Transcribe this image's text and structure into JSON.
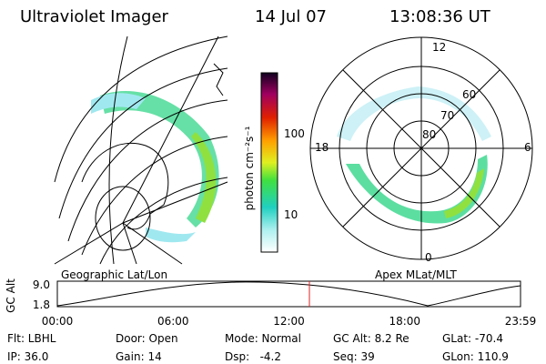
{
  "header": {
    "title": "Ultraviolet Imager",
    "date": "14 Jul 07",
    "time": "13:08:36 UT"
  },
  "left_panel": {
    "label": "Geographic Lat/Lon"
  },
  "right_panel": {
    "label": "Apex MLat/MLT",
    "mlt_labels": [
      "12",
      "18",
      "6",
      "0"
    ],
    "lat_labels": [
      "60",
      "70",
      "80"
    ]
  },
  "colorbar": {
    "unit_label": "photon cm⁻²s⁻¹",
    "ticks": [
      "100",
      "10"
    ]
  },
  "altitude_plot": {
    "ylabel": "GC Alt",
    "yticks": [
      "9.0",
      "1.8"
    ],
    "xticks": [
      "00:00",
      "06:00",
      "12:00",
      "18:00",
      "23:59"
    ]
  },
  "status": {
    "rows": [
      [
        "Flt: LBHL",
        "Door: Open",
        "Mode: Normal",
        "GC Alt: 8.2 Re",
        "GLat: -70.4"
      ],
      [
        "IP: 36.0",
        "Gain: 14",
        "Dsp:   -4.2",
        "Seq: 39",
        "GLon: 110.9"
      ]
    ]
  }
}
